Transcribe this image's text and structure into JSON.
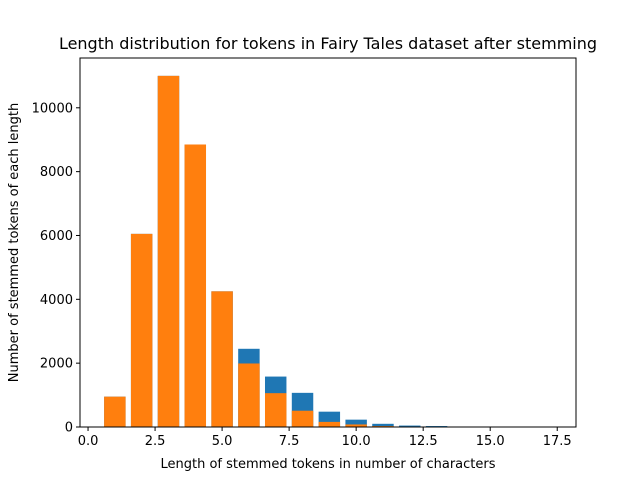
{
  "chart_data": {
    "type": "bar",
    "title": "Length distribution for tokens in Fairy Tales dataset after stemming",
    "xlabel": "Length of stemmed tokens in number of characters",
    "ylabel": "Number of stemmed tokens of each length",
    "xlim": [
      -0.3,
      18.2
    ],
    "ylim": [
      0,
      11560
    ],
    "xticks": [
      0.0,
      2.5,
      5.0,
      7.5,
      10.0,
      12.5,
      15.0,
      17.5
    ],
    "xtick_labels": [
      "0.0",
      "2.5",
      "5.0",
      "7.5",
      "10.0",
      "12.5",
      "15.0",
      "17.5"
    ],
    "yticks": [
      0,
      2000,
      4000,
      6000,
      8000,
      10000
    ],
    "ytick_labels": [
      "0",
      "2000",
      "4000",
      "6000",
      "8000",
      "10000"
    ],
    "bar_width": 0.8,
    "overlay": true,
    "grid": false,
    "series": [
      {
        "color": "#1f77b4",
        "x": [
          1,
          2,
          3,
          4,
          5,
          6,
          7,
          8,
          9,
          10,
          11,
          12,
          13,
          14,
          15,
          16,
          17
        ],
        "values": [
          950,
          6050,
          11000,
          8850,
          4250,
          2450,
          1580,
          1070,
          480,
          230,
          100,
          45,
          30,
          10,
          6,
          3,
          2
        ]
      },
      {
        "color": "#ff7f0e",
        "x": [
          1,
          2,
          3,
          4,
          5,
          6,
          7,
          8,
          9,
          10,
          11,
          12,
          13,
          14,
          15,
          16,
          17
        ],
        "values": [
          950,
          6050,
          11000,
          8850,
          4250,
          1990,
          1060,
          510,
          160,
          80,
          30,
          10,
          5,
          2,
          0,
          0,
          0
        ]
      }
    ]
  }
}
